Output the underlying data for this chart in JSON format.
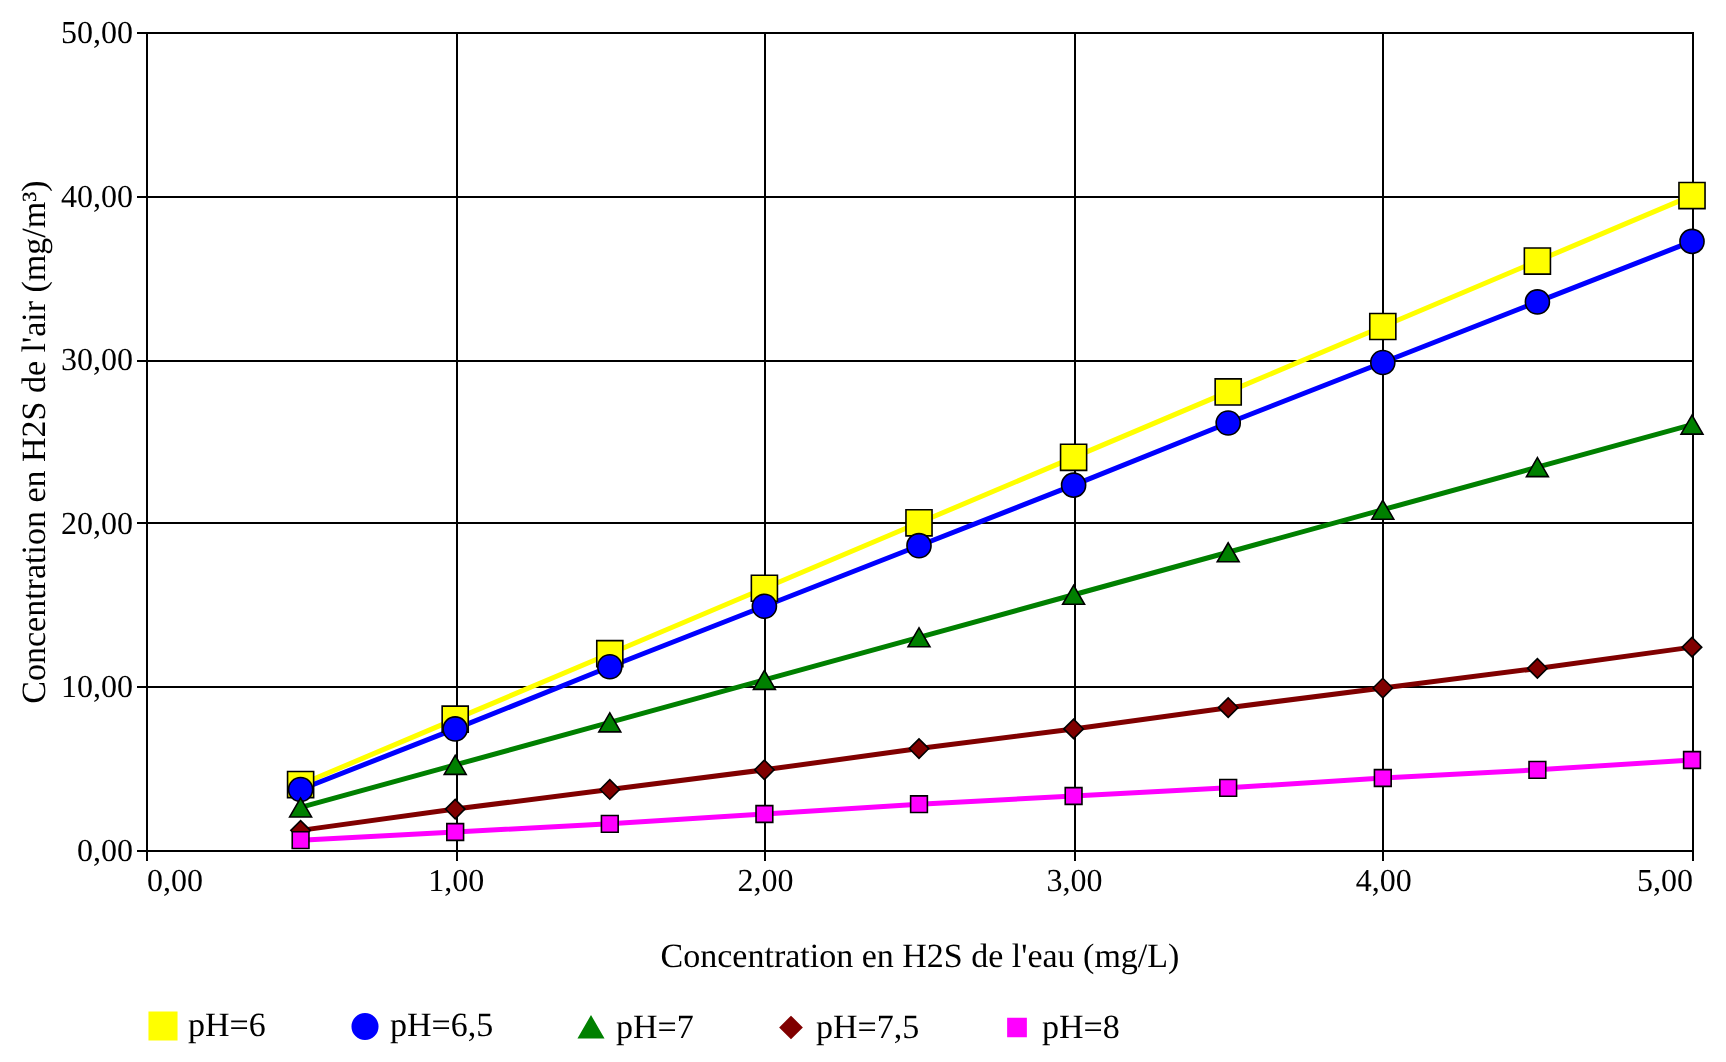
{
  "chart_data": {
    "type": "line",
    "xlabel": "Concentration en H2S de l'eau (mg/L)",
    "ylabel": "Concentration en H2S de l'air (mg/m³)",
    "x": [
      0.5,
      1.0,
      1.5,
      2.0,
      2.5,
      3.0,
      3.5,
      4.0,
      4.5,
      5.0
    ],
    "series": [
      {
        "name": "pH=6",
        "color": "#ffff00",
        "marker": "square",
        "values": [
          4.0,
          8.0,
          12.0,
          16.0,
          20.0,
          24.0,
          28.0,
          32.0,
          36.0,
          40.0
        ]
      },
      {
        "name": "pH=6,5",
        "color": "#0000ff",
        "marker": "circle",
        "values": [
          3.7,
          7.4,
          11.2,
          14.9,
          18.6,
          22.3,
          26.1,
          29.8,
          33.5,
          37.2
        ]
      },
      {
        "name": "pH=7",
        "color": "#008000",
        "marker": "triangle",
        "values": [
          2.6,
          5.2,
          7.8,
          10.4,
          13.0,
          15.6,
          18.2,
          20.8,
          23.4,
          26.0
        ]
      },
      {
        "name": "pH=7,5",
        "color": "#800000",
        "marker": "diamond",
        "values": [
          1.2,
          2.5,
          3.7,
          4.9,
          6.2,
          7.4,
          8.7,
          9.9,
          11.1,
          12.4
        ]
      },
      {
        "name": "pH=8",
        "color": "#ff00ff",
        "marker": "square",
        "values": [
          0.6,
          1.1,
          1.6,
          2.2,
          2.8,
          3.3,
          3.8,
          4.4,
          4.9,
          5.5
        ]
      }
    ],
    "xlim": [
      0,
      5
    ],
    "xticks": [
      {
        "value": 0,
        "label": "0,00"
      },
      {
        "value": 1,
        "label": "1,00"
      },
      {
        "value": 2,
        "label": "2,00"
      },
      {
        "value": 3,
        "label": "3,00"
      },
      {
        "value": 4,
        "label": "4,00"
      },
      {
        "value": 5,
        "label": "5,00"
      }
    ],
    "ylim": [
      0,
      50
    ],
    "yticks": [
      {
        "value": 0,
        "label": "0,00"
      },
      {
        "value": 10,
        "label": "10,00"
      },
      {
        "value": 20,
        "label": "20,00"
      },
      {
        "value": 30,
        "label": "30,00"
      },
      {
        "value": 40,
        "label": "40,00"
      },
      {
        "value": 50,
        "label": "50,00"
      }
    ],
    "grid": true,
    "legend": "bottom",
    "line_style": "solid"
  }
}
